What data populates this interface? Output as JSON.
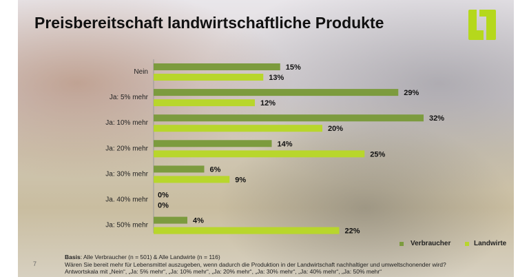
{
  "title": "Preisbereitschaft landwirtschaftliche Produkte",
  "page_number": "7",
  "footer": {
    "basis_label": "Basis",
    "basis_text": ": Alle Verbraucher (n = 501) & Alle Landwirte (n = 116)",
    "question": "Wären Sie bereit mehr für Lebensmittel auszugeben, wenn dadurch die Produktion in der Landwirtschaft nachhaltiger und umweltschonender wird?",
    "scale": "Antwortskala mit „Nein“, „Ja: 5% mehr“, „Ja: 10% mehr“, „Ja: 20% mehr“, „Ja: 30% mehr“, „Ja: 40% mehr“, „Ja: 50% mehr“"
  },
  "colors": {
    "verbraucher": "#7c9b3e",
    "landwirte": "#b8d62c",
    "logo": "#b5d81c"
  },
  "chart_data": {
    "type": "bar",
    "orientation": "horizontal",
    "title": "Preisbereitschaft landwirtschaftliche Produkte",
    "categories": [
      "Nein",
      "Ja: 5% mehr",
      "Ja: 10% mehr",
      "Ja: 20% mehr",
      "Ja: 30% mehr",
      "Ja. 40% mehr",
      "Ja: 50% mehr"
    ],
    "series": [
      {
        "name": "Verbraucher",
        "values": [
          15,
          29,
          32,
          14,
          6,
          0,
          4
        ]
      },
      {
        "name": "Landwirte",
        "values": [
          13,
          12,
          20,
          25,
          9,
          0,
          22
        ]
      }
    ],
    "unit": "%",
    "xlim": [
      0,
      35
    ],
    "grid": false,
    "legend": "bottom-right"
  }
}
